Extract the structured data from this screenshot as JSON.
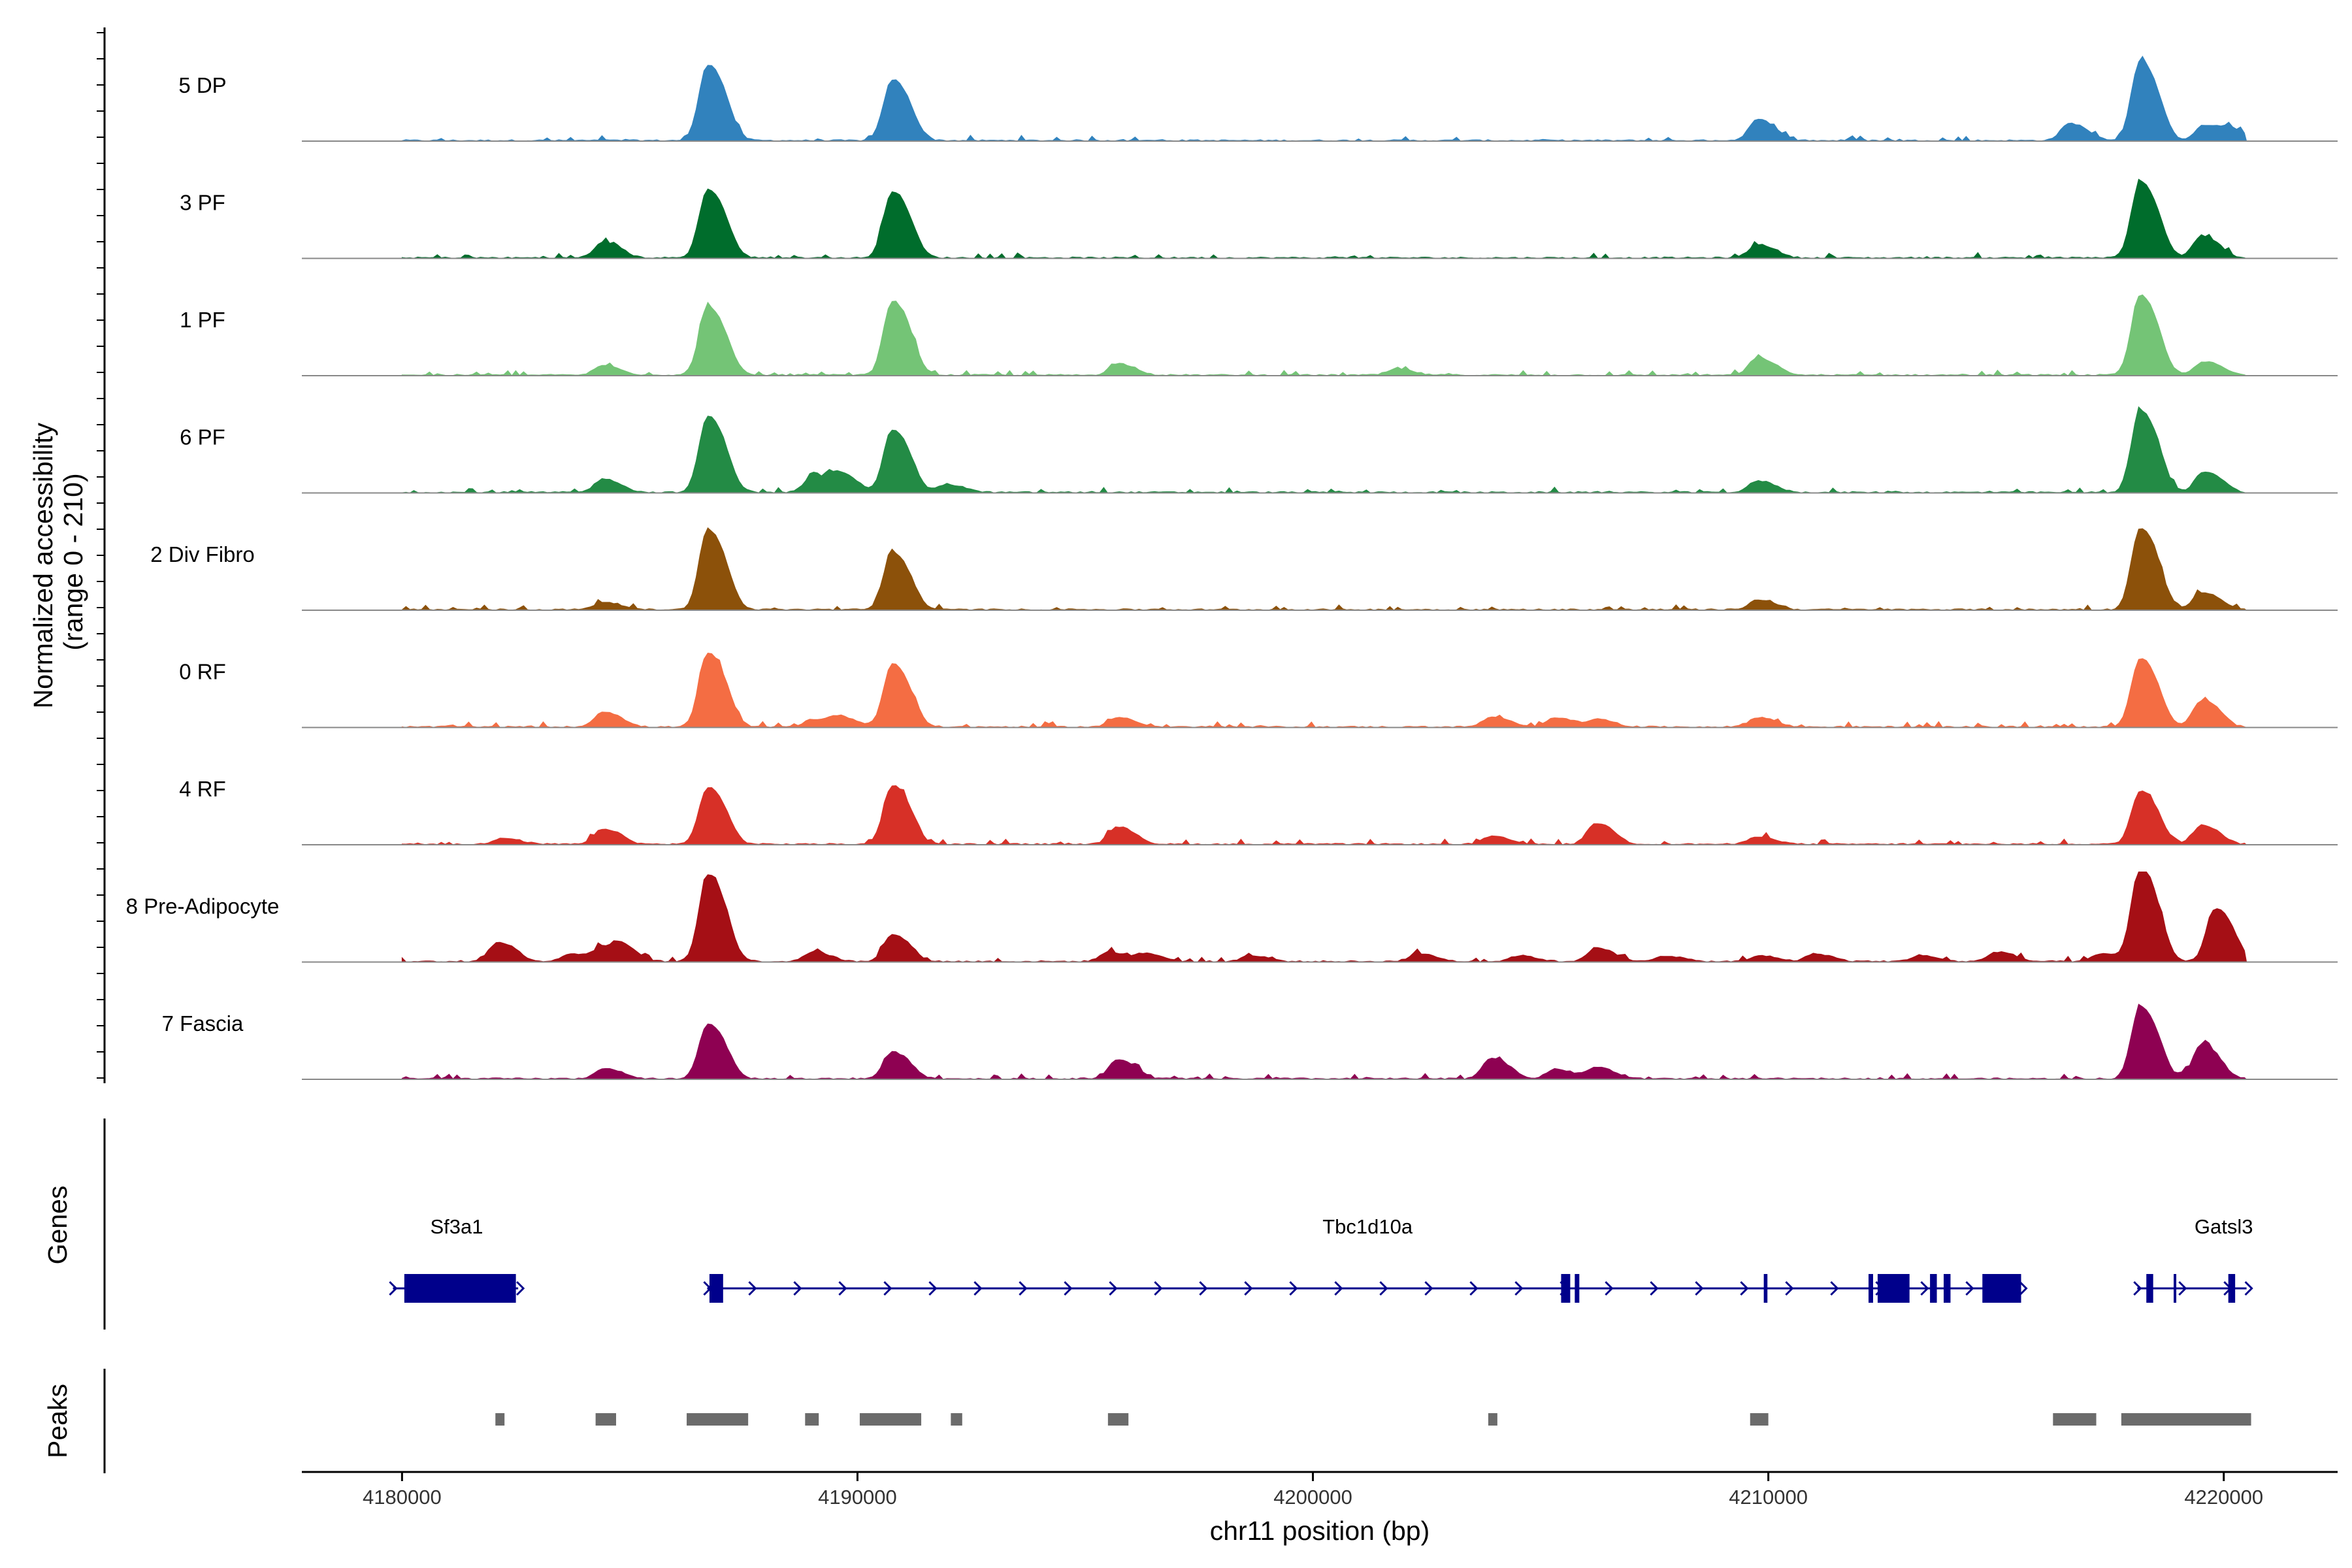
{
  "chart_data": {
    "type": "coverage",
    "ylabel_line1": "Normalized accessibility",
    "ylabel_line2": "(range 0 - 210)",
    "y_range": [
      0,
      210
    ],
    "xlabel": "chr11 position (bp)",
    "xlim": [
      4177800,
      4222500
    ],
    "x_ticks": [
      {
        "value": 4180000,
        "label": "4180000"
      },
      {
        "value": 4190000,
        "label": "4190000"
      },
      {
        "value": 4200000,
        "label": "4200000"
      },
      {
        "value": 4210000,
        "label": "4210000"
      },
      {
        "value": 4220000,
        "label": "4220000"
      }
    ],
    "tracks": [
      {
        "name": "5 DP",
        "color": "#3182BD",
        "peaks": [
          [
            4186700,
            200
          ],
          [
            4190750,
            160
          ],
          [
            4209750,
            55
          ],
          [
            4216600,
            45
          ],
          [
            4218150,
            210
          ],
          [
            4219550,
            40
          ],
          [
            4220150,
            25
          ]
        ]
      },
      {
        "name": "3 PF",
        "color": "#006D2C",
        "peaks": [
          [
            4184400,
            40
          ],
          [
            4186700,
            180
          ],
          [
            4190750,
            175
          ],
          [
            4209750,
            35
          ],
          [
            4218150,
            200
          ],
          [
            4219500,
            55
          ]
        ]
      },
      {
        "name": "1 PF",
        "color": "#74C476",
        "peaks": [
          [
            4184400,
            25
          ],
          [
            4186700,
            180
          ],
          [
            4190750,
            195
          ],
          [
            4195700,
            30
          ],
          [
            4201800,
            15
          ],
          [
            4209750,
            45
          ],
          [
            4218150,
            210
          ],
          [
            4219550,
            35
          ]
        ]
      },
      {
        "name": "6 PF",
        "color": "#238B45",
        "peaks": [
          [
            4184400,
            35
          ],
          [
            4186700,
            200
          ],
          [
            4189000,
            40
          ],
          [
            4189600,
            45
          ],
          [
            4190750,
            165
          ],
          [
            4191950,
            20
          ],
          [
            4209750,
            30
          ],
          [
            4218150,
            215
          ],
          [
            4219550,
            55
          ]
        ]
      },
      {
        "name": "2 Div Fibro",
        "color": "#8C510A",
        "peaks": [
          [
            4184400,
            20
          ],
          [
            4186700,
            210
          ],
          [
            4190750,
            150
          ],
          [
            4209750,
            25
          ],
          [
            4218150,
            215
          ],
          [
            4219500,
            45
          ]
        ]
      },
      {
        "name": "0 RF",
        "color": "#F46D43",
        "peaks": [
          [
            4184400,
            40
          ],
          [
            4186700,
            195
          ],
          [
            4189000,
            20
          ],
          [
            4189600,
            25
          ],
          [
            4190750,
            165
          ],
          [
            4195700,
            25
          ],
          [
            4203900,
            25
          ],
          [
            4205300,
            25
          ],
          [
            4206200,
            20
          ],
          [
            4209750,
            25
          ],
          [
            4218150,
            180
          ],
          [
            4219500,
            70
          ]
        ]
      },
      {
        "name": "4 RF",
        "color": "#D73027",
        "peaks": [
          [
            4182200,
            15
          ],
          [
            4184400,
            40
          ],
          [
            4186700,
            150
          ],
          [
            4190750,
            155
          ],
          [
            4195700,
            45
          ],
          [
            4203900,
            20
          ],
          [
            4206200,
            55
          ],
          [
            4209750,
            20
          ],
          [
            4218150,
            140
          ],
          [
            4219500,
            50
          ]
        ]
      },
      {
        "name": "8 Pre-Adipocyte",
        "color": "#A50F15",
        "peaks": [
          [
            4182100,
            50
          ],
          [
            4183700,
            20
          ],
          [
            4184400,
            35
          ],
          [
            4184800,
            30
          ],
          [
            4186700,
            230
          ],
          [
            4189000,
            25
          ],
          [
            4190750,
            70
          ],
          [
            4195500,
            25
          ],
          [
            4196300,
            20
          ],
          [
            4198600,
            15
          ],
          [
            4202300,
            20
          ],
          [
            4204500,
            15
          ],
          [
            4206200,
            35
          ],
          [
            4207700,
            15
          ],
          [
            4209800,
            15
          ],
          [
            4211000,
            20
          ],
          [
            4213300,
            15
          ],
          [
            4215000,
            25
          ],
          [
            4217300,
            20
          ],
          [
            4218150,
            250
          ],
          [
            4219800,
            140
          ]
        ]
      },
      {
        "name": "7 Fascia",
        "color": "#8E0152",
        "peaks": [
          [
            4184400,
            25
          ],
          [
            4186700,
            145
          ],
          [
            4190750,
            70
          ],
          [
            4195700,
            50
          ],
          [
            4203900,
            55
          ],
          [
            4205300,
            25
          ],
          [
            4206200,
            30
          ],
          [
            4218150,
            190
          ],
          [
            4219500,
            90
          ]
        ]
      }
    ],
    "genes": [
      {
        "name": "Sf3a1",
        "start": 4179800,
        "end": 4182550,
        "exons": [
          [
            4180050,
            4182500
          ]
        ],
        "label_pos": 4181200
      },
      {
        "name": "Tbc1d10a",
        "start": 4186700,
        "end": 4215550,
        "exons": [
          [
            4186750,
            4187050
          ],
          [
            4205450,
            4205650
          ],
          [
            4205750,
            4205850
          ],
          [
            4209900,
            4209980
          ],
          [
            4212200,
            4212300
          ],
          [
            4212400,
            4213100
          ],
          [
            4213550,
            4213700
          ],
          [
            4213850,
            4214000
          ],
          [
            4214700,
            4215550
          ]
        ],
        "label_pos": 4201200
      },
      {
        "name": "Gatsl3",
        "start": 4218100,
        "end": 4220500,
        "exons": [
          [
            4218300,
            4218450
          ],
          [
            4218900,
            4218950
          ],
          [
            4220100,
            4220250
          ]
        ],
        "label_pos": 4220000
      }
    ],
    "peak_regions": [
      [
        4182050,
        4182250
      ],
      [
        4184250,
        4184700
      ],
      [
        4186250,
        4187600
      ],
      [
        4188850,
        4189150
      ],
      [
        4190050,
        4191400
      ],
      [
        4192050,
        4192300
      ],
      [
        4195500,
        4195950
      ],
      [
        4203850,
        4204050
      ],
      [
        4209600,
        4210000
      ],
      [
        4216250,
        4217200
      ],
      [
        4217750,
        4220600
      ]
    ],
    "panels": {
      "genes": "Genes",
      "peaks": "Peaks"
    }
  }
}
